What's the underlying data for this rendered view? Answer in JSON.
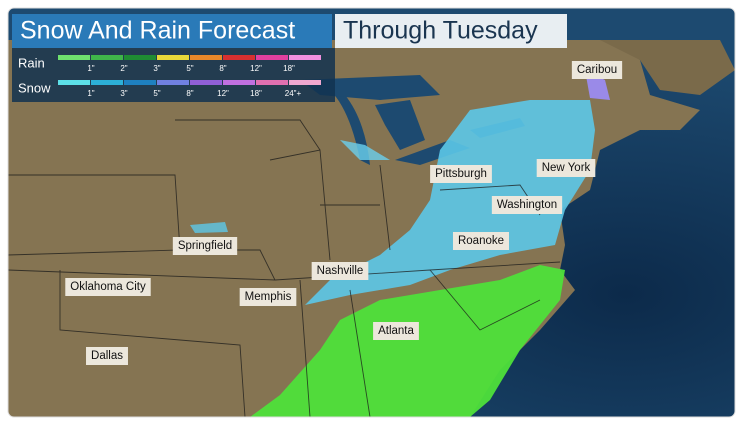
{
  "header": {
    "title": "Snow And Rain Forecast",
    "subtitle": "Through Tuesday"
  },
  "legend": {
    "rain": {
      "label": "Rain",
      "ticks": [
        "1\"",
        "2\"",
        "3\"",
        "5\"",
        "8\"",
        "12\"",
        "18\""
      ]
    },
    "snow": {
      "label": "Snow",
      "ticks": [
        "1\"",
        "3\"",
        "5\"",
        "8\"",
        "12\"",
        "18\"",
        "24\"+"
      ]
    }
  },
  "cities": [
    {
      "label": "Caribou"
    },
    {
      "label": "Pittsburgh"
    },
    {
      "label": "New York"
    },
    {
      "label": "Washington"
    },
    {
      "label": "Roanoke"
    },
    {
      "label": "Springfield"
    },
    {
      "label": "Nashville"
    },
    {
      "label": "Oklahoma City"
    },
    {
      "label": "Memphis"
    },
    {
      "label": "Atlanta"
    },
    {
      "label": "Dallas"
    }
  ]
}
